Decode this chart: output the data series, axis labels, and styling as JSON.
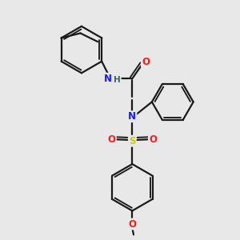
{
  "bg_color": "#e8e8e8",
  "bond_color": "#1a1a1a",
  "N_color": "#1a1aff",
  "O_color": "#ff1a1a",
  "S_color": "#cccc00",
  "H_color": "#406060",
  "line_width": 1.6,
  "font_size": 8.5,
  "layout": {
    "xlim": [
      0,
      10
    ],
    "ylim": [
      0,
      10
    ]
  }
}
